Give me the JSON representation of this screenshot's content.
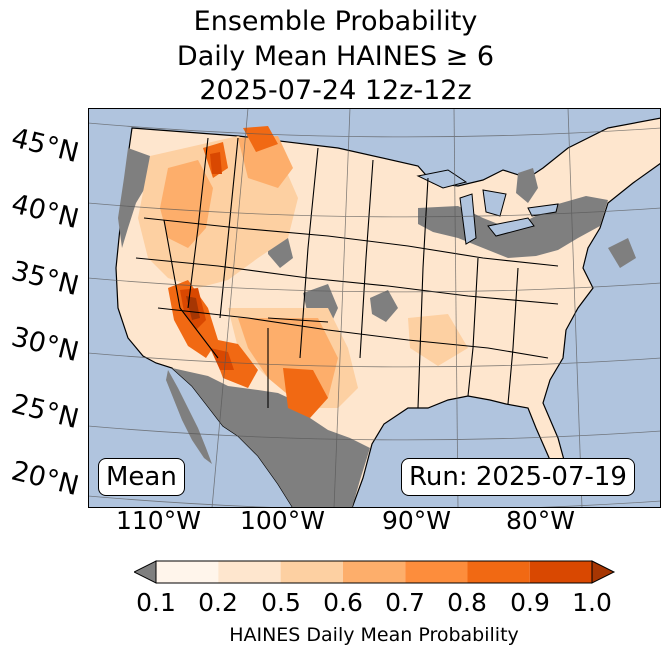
{
  "title": {
    "line1": "Ensemble Probability",
    "line2": "Daily Mean HAINES ≥ 6",
    "line3": "2025-07-24 12z-12z"
  },
  "map": {
    "lat_labels": [
      "45°N",
      "40°N",
      "35°N",
      "30°N",
      "25°N",
      "20°N"
    ],
    "lon_labels": [
      "110°W",
      "100°W",
      "90°W",
      "80°W"
    ],
    "stat_label": "Mean",
    "run_label": "Run: 2025-07-19",
    "colors": {
      "ocean": "#b0c4de",
      "land_low": "#7f7f7f",
      "bin_0.1_0.2": "#fff5eb",
      "bin_0.2_0.5": "#fee6ce",
      "bin_0.5_0.6": "#fdd0a2",
      "bin_0.6_0.7": "#fdae6b",
      "bin_0.7_0.8": "#fd8d3c",
      "bin_0.8_0.9": "#f16913",
      "bin_0.9_1.0": "#d94801",
      "over": "#a63603"
    }
  },
  "colorbar": {
    "ticks": [
      "0.1",
      "0.2",
      "0.5",
      "0.6",
      "0.7",
      "0.8",
      "0.9",
      "1.0"
    ],
    "label": "HAINES Daily Mean Probability"
  }
}
